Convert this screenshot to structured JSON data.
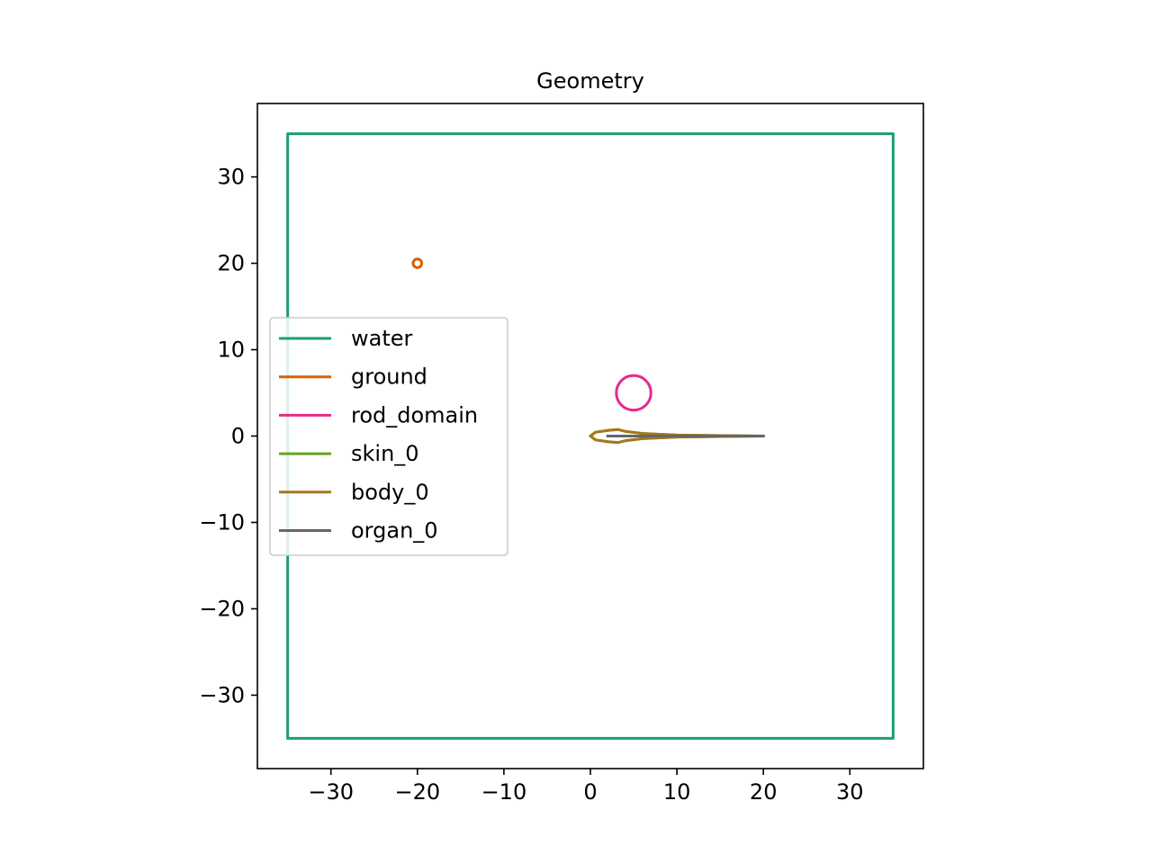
{
  "chart_data": {
    "type": "line",
    "title": "Geometry",
    "xlabel": "",
    "ylabel": "",
    "xlim": [
      -38.5,
      38.5
    ],
    "ylim": [
      -38.5,
      38.5
    ],
    "xticks": [
      -30,
      -20,
      -10,
      0,
      10,
      20,
      30
    ],
    "yticks": [
      -30,
      -20,
      -10,
      0,
      10,
      20,
      30
    ],
    "xtick_labels": [
      "−30",
      "−20",
      "−10",
      "0",
      "10",
      "20",
      "30"
    ],
    "ytick_labels": [
      "−30",
      "−20",
      "−10",
      "0",
      "10",
      "20",
      "30"
    ],
    "grid": false,
    "legend_position": "center-left",
    "series": [
      {
        "name": "water",
        "color": "#1b9e77",
        "x": [
          -35,
          35,
          35,
          -35,
          -35
        ],
        "y": [
          -35,
          -35,
          35,
          35,
          -35
        ]
      },
      {
        "name": "ground",
        "color": "#d95f02",
        "shape": "circle",
        "center": [
          -20,
          20
        ],
        "radius": 0.5
      },
      {
        "name": "rod_domain",
        "color": "#e7298a",
        "shape": "circle",
        "center": [
          5,
          5
        ],
        "radius": 2
      },
      {
        "name": "skin_0",
        "color": "#66a61e",
        "x": [
          20,
          15,
          10,
          6,
          4,
          3.2,
          2,
          0.6,
          0,
          0.6,
          2,
          3.2,
          4,
          6,
          10,
          15,
          20
        ],
        "y": [
          0,
          0.05,
          0.12,
          0.3,
          0.55,
          0.75,
          0.65,
          0.45,
          0,
          -0.45,
          -0.65,
          -0.75,
          -0.55,
          -0.3,
          -0.12,
          -0.05,
          0
        ]
      },
      {
        "name": "body_0",
        "color": "#a6761d",
        "x": [
          20,
          15,
          10,
          6,
          4,
          3.2,
          2,
          0.6,
          0,
          0.6,
          2,
          3.2,
          4,
          6,
          10,
          15,
          20
        ],
        "y": [
          0,
          0.05,
          0.12,
          0.3,
          0.55,
          0.75,
          0.65,
          0.45,
          0,
          -0.45,
          -0.65,
          -0.75,
          -0.55,
          -0.3,
          -0.12,
          -0.05,
          0
        ]
      },
      {
        "name": "organ_0",
        "color": "#666666",
        "x": [
          2,
          20
        ],
        "y": [
          0,
          0
        ]
      }
    ]
  }
}
